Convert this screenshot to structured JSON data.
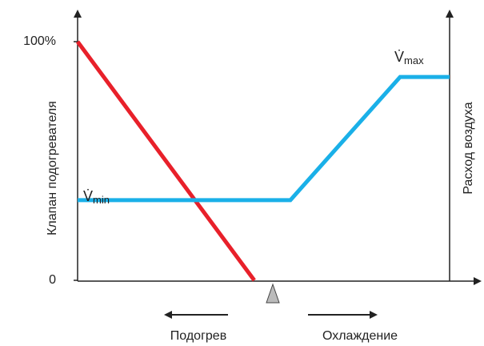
{
  "chart_data": {
    "type": "line",
    "ylabel": "Клапан подогревателя",
    "y2label": "Расход воздуха",
    "xlim": [
      0,
      100
    ],
    "ylim": [
      0,
      100
    ],
    "yticks": [
      0,
      {
        "value": 100,
        "label": "100%"
      }
    ],
    "series": [
      {
        "color": "#e8202a",
        "x": [
          0,
          47.5
        ],
        "values": [
          100,
          0
        ]
      },
      {
        "color": "#1ab0e8",
        "x": [
          0,
          57.2,
          86.7,
          100
        ],
        "values": [
          33.6,
          33.6,
          85.2,
          85.2
        ]
      }
    ],
    "annotations": [
      {
        "text": "V̇",
        "subscript": "min"
      },
      {
        "text": "V̇",
        "subscript": "max"
      }
    ],
    "directions": [
      "Подогрев",
      "Охлаждение"
    ]
  }
}
